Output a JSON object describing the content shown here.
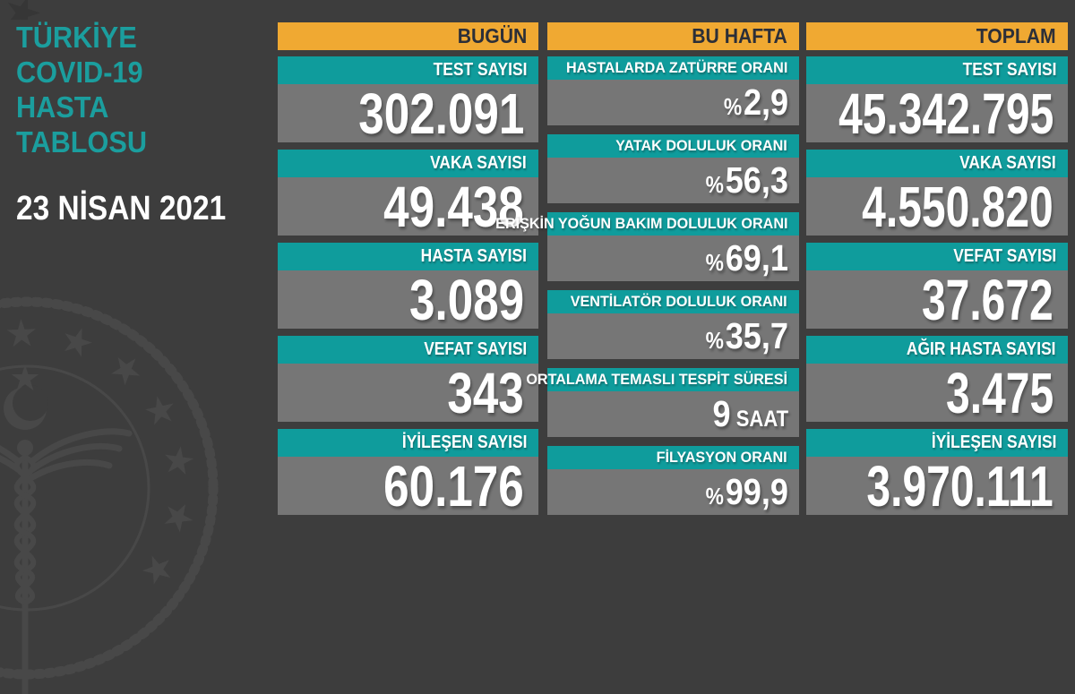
{
  "sidebar": {
    "title_lines": [
      "TÜRKİYE",
      "COVID-19",
      "HASTA",
      "TABLOSU"
    ],
    "date": "23 NİSAN 2021"
  },
  "columns": [
    {
      "header": "BUGÜN",
      "type": "stat",
      "items": [
        {
          "label": "TEST SAYISI",
          "value": "302.091"
        },
        {
          "label": "VAKA SAYISI",
          "value": "49.438"
        },
        {
          "label": "HASTA SAYISI",
          "value": "3.089"
        },
        {
          "label": "VEFAT SAYISI",
          "value": "343"
        },
        {
          "label": "İYİLEŞEN SAYISI",
          "value": "60.176"
        }
      ]
    },
    {
      "header": "BU HAFTA",
      "type": "rate",
      "items": [
        {
          "label": "HASTALARDA ZATÜRRE ORANI",
          "prefix": "%",
          "value": "2,9"
        },
        {
          "label": "YATAK DOLULUK ORANI",
          "prefix": "%",
          "value": "56,3"
        },
        {
          "label": "ERİŞKİN YOĞUN BAKIM DOLULUK ORANI",
          "prefix": "%",
          "value": "69,1"
        },
        {
          "label": "VENTİLATÖR DOLULUK ORANI",
          "prefix": "%",
          "value": "35,7"
        },
        {
          "label": "ORTALAMA TEMASLI TESPİT SÜRESİ",
          "value": "9",
          "suffix": "SAAT"
        },
        {
          "label": "FİLYASYON ORANI",
          "prefix": "%",
          "value": "99,9"
        }
      ]
    },
    {
      "header": "TOPLAM",
      "type": "stat",
      "items": [
        {
          "label": "TEST SAYISI",
          "value": "45.342.795"
        },
        {
          "label": "VAKA SAYISI",
          "value": "4.550.820"
        },
        {
          "label": "VEFAT SAYISI",
          "value": "37.672"
        },
        {
          "label": "AĞIR HASTA SAYISI",
          "value": "3.475"
        },
        {
          "label": "İYİLEŞEN SAYISI",
          "value": "3.970.111"
        }
      ]
    }
  ],
  "chart_data": {
    "type": "table",
    "title": "TÜRKİYE COVID-19 HASTA TABLOSU",
    "date": "23 NİSAN 2021",
    "sections": [
      {
        "name": "BUGÜN",
        "rows": [
          [
            "TEST SAYISI",
            302091
          ],
          [
            "VAKA SAYISI",
            49438
          ],
          [
            "HASTA SAYISI",
            3089
          ],
          [
            "VEFAT SAYISI",
            343
          ],
          [
            "İYİLEŞEN SAYISI",
            60176
          ]
        ]
      },
      {
        "name": "BU HAFTA",
        "rows": [
          [
            "HASTALARDA ZATÜRRE ORANI",
            "%2,9"
          ],
          [
            "YATAK DOLULUK ORANI",
            "%56,3"
          ],
          [
            "ERİŞKİN YOĞUN BAKIM DOLULUK ORANI",
            "%69,1"
          ],
          [
            "VENTİLATÖR DOLULUK ORANI",
            "%35,7"
          ],
          [
            "ORTALAMA TEMASLI TESPİT SÜRESİ",
            "9 SAAT"
          ],
          [
            "FİLYASYON ORANI",
            "%99,9"
          ]
        ]
      },
      {
        "name": "TOPLAM",
        "rows": [
          [
            "TEST SAYISI",
            45342795
          ],
          [
            "VAKA SAYISI",
            4550820
          ],
          [
            "VEFAT SAYISI",
            37672
          ],
          [
            "AĞIR HASTA SAYISI",
            3475
          ],
          [
            "İYİLEŞEN SAYISI",
            3970111
          ]
        ]
      }
    ]
  },
  "colors": {
    "background": "#3d3d3d",
    "header_bar": "#f0a932",
    "label_bar": "#0f9c9c",
    "value_bar": "#767676",
    "header_text": "#2c2f38",
    "title_teal": "#1b9e9e",
    "text_white": "#ffffff",
    "watermark": "#484848"
  },
  "watermark": {
    "name": "turkey-ministry-of-health-emblem"
  }
}
